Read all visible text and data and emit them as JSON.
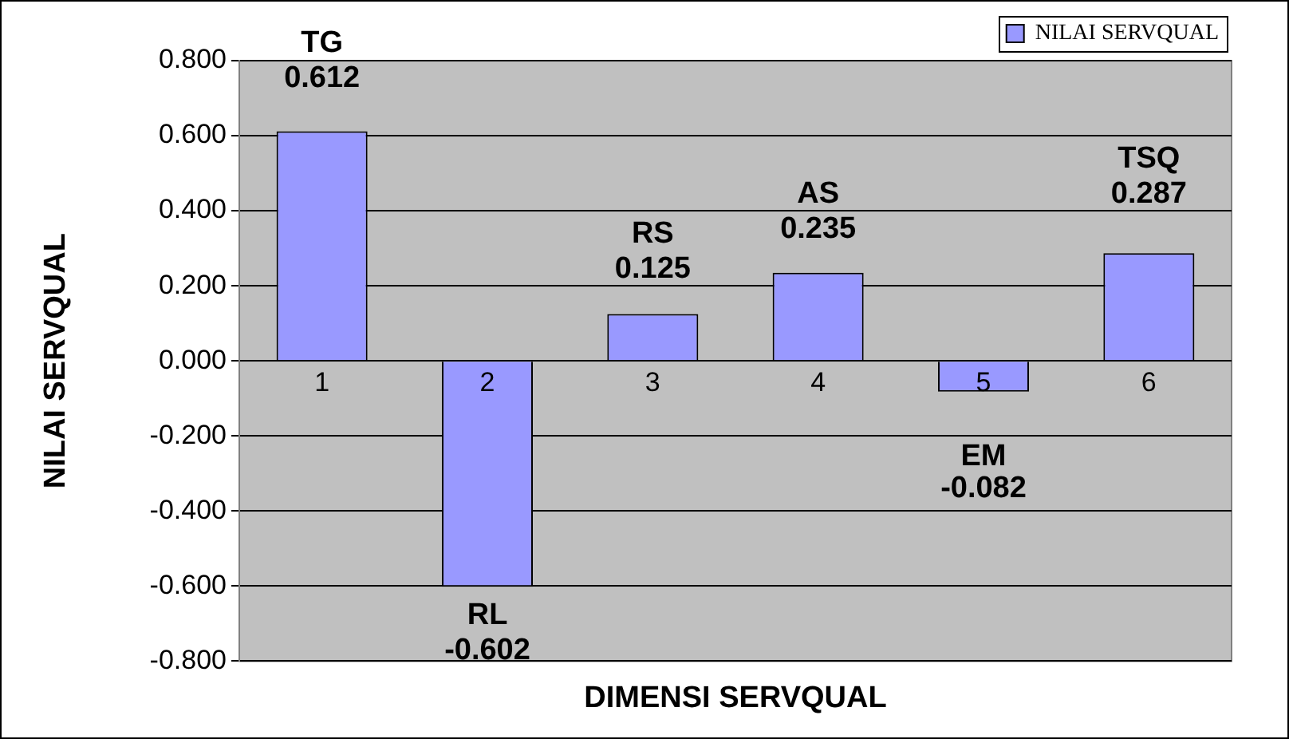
{
  "chart_data": {
    "type": "bar",
    "xlabel": "DIMENSI SERVQUAL",
    "ylabel": "NILAI SERVQUAL",
    "categories": [
      "1",
      "2",
      "3",
      "4",
      "5",
      "6"
    ],
    "series": [
      {
        "name": "NILAI SERVQUAL",
        "color": "#9999ff",
        "values": [
          0.612,
          -0.602,
          0.125,
          0.235,
          -0.082,
          0.287
        ]
      }
    ],
    "ylim": [
      -0.8,
      0.8
    ],
    "yticks": [
      {
        "value": -0.8,
        "label": "-0.800"
      },
      {
        "value": -0.6,
        "label": "-0.600"
      },
      {
        "value": -0.4,
        "label": "-0.400"
      },
      {
        "value": -0.2,
        "label": "-0.200"
      },
      {
        "value": 0,
        "label": "0.000"
      },
      {
        "value": 0.2,
        "label": "0.200"
      },
      {
        "value": 0.4,
        "label": "0.400"
      },
      {
        "value": 0.6,
        "label": "0.600"
      },
      {
        "value": 0.8,
        "label": "0.800"
      }
    ],
    "annotations": [
      {
        "text": "TG",
        "x": "1",
        "y": 0.612
      },
      {
        "text": "RL",
        "x": "2",
        "y": -0.602
      },
      {
        "text": "RS",
        "x": "3",
        "y": 0.125
      },
      {
        "text": "AS",
        "x": "4",
        "y": 0.235
      },
      {
        "text": "EM",
        "x": "5",
        "y": -0.082
      },
      {
        "text": "TSQ",
        "x": "6",
        "y": 0.287
      }
    ],
    "data_labels": true,
    "grid": "y",
    "legend": "top right"
  }
}
